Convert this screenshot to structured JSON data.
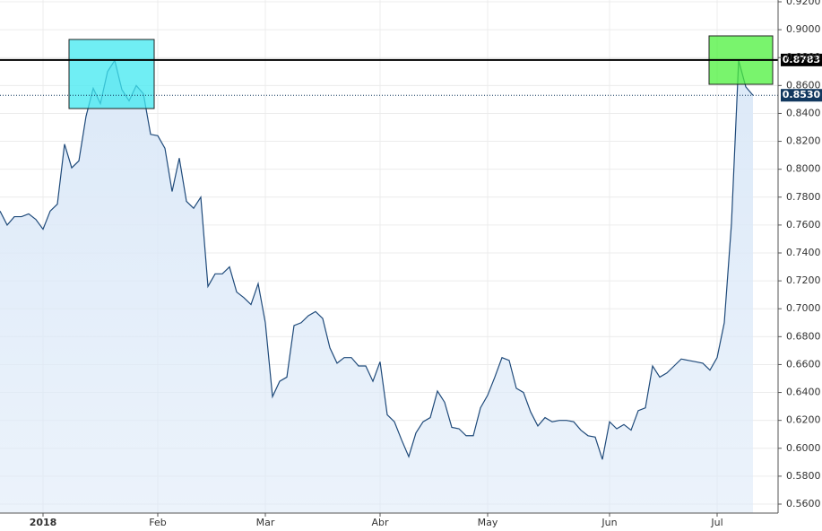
{
  "chart_data": {
    "type": "area-line",
    "color": "#1f4a7a",
    "fill": "#dce9f8",
    "grid": true,
    "categories": [
      null,
      null,
      null,
      null,
      null,
      null,
      "2018",
      null,
      null,
      null,
      null,
      null,
      null,
      null,
      null,
      null,
      null,
      null,
      null,
      null,
      null,
      null,
      "Feb",
      null,
      null,
      null,
      null,
      null,
      null,
      null,
      null,
      null,
      null,
      null,
      null,
      null,
      null,
      "Mar",
      null,
      null,
      null,
      null,
      null,
      null,
      null,
      null,
      null,
      null,
      null,
      null,
      null,
      null,
      null,
      "Abr",
      null,
      null,
      null,
      null,
      null,
      null,
      null,
      null,
      null,
      null,
      null,
      null,
      null,
      null,
      "May",
      null,
      null,
      null,
      null,
      null,
      null,
      null,
      null,
      null,
      null,
      null,
      null,
      null,
      null,
      null,
      null,
      "Jun",
      null,
      null,
      null,
      null,
      null,
      null,
      null,
      null,
      null,
      null,
      null,
      null,
      null,
      null,
      "Jul",
      null,
      null,
      null,
      null,
      null
    ],
    "values": [
      0.77,
      0.76,
      0.766,
      0.766,
      0.768,
      0.764,
      0.757,
      0.77,
      0.775,
      0.818,
      0.801,
      0.806,
      0.838,
      0.858,
      0.847,
      0.87,
      0.878,
      0.857,
      0.849,
      0.86,
      0.854,
      0.825,
      0.824,
      0.815,
      0.784,
      0.808,
      0.777,
      0.772,
      0.78,
      0.716,
      0.725,
      0.725,
      0.73,
      0.712,
      0.708,
      0.703,
      0.718,
      0.69,
      0.637,
      0.648,
      0.651,
      0.688,
      0.69,
      0.695,
      0.698,
      0.693,
      0.672,
      0.661,
      0.665,
      0.665,
      0.659,
      0.659,
      0.648,
      0.662,
      0.624,
      0.619,
      0.606,
      0.594,
      0.611,
      0.619,
      0.622,
      0.641,
      0.633,
      0.615,
      0.614,
      0.609,
      0.609,
      0.629,
      0.638,
      0.651,
      0.665,
      0.663,
      0.643,
      0.64,
      0.626,
      0.616,
      0.622,
      0.619,
      0.62,
      0.62,
      0.619,
      0.613,
      0.609,
      0.608,
      0.592,
      0.619,
      0.614,
      0.617,
      0.613,
      0.627,
      0.629,
      0.659,
      0.651,
      0.654,
      0.659,
      0.664,
      0.663,
      0.662,
      0.661,
      0.656,
      0.665,
      0.69,
      0.761,
      0.878,
      0.859,
      0.853
    ],
    "ylim": [
      0.556,
      0.9213
    ],
    "yticks": [
      {
        "value": 0.56,
        "label": "0.5600"
      },
      {
        "value": 0.58,
        "label": "0.5800"
      },
      {
        "value": 0.6,
        "label": "0.6000"
      },
      {
        "value": 0.62,
        "label": "0.6200"
      },
      {
        "value": 0.64,
        "label": "0.6400"
      },
      {
        "value": 0.66,
        "label": "0.6600"
      },
      {
        "value": 0.68,
        "label": "0.6800"
      },
      {
        "value": 0.7,
        "label": "0.7000"
      },
      {
        "value": 0.72,
        "label": "0.7200"
      },
      {
        "value": 0.74,
        "label": "0.7400"
      },
      {
        "value": 0.76,
        "label": "0.7600"
      },
      {
        "value": 0.78,
        "label": "0.7800"
      },
      {
        "value": 0.8,
        "label": "0.8000"
      },
      {
        "value": 0.82,
        "label": "0.8200"
      },
      {
        "value": 0.84,
        "label": "0.8400"
      },
      {
        "value": 0.86,
        "label": "0.8600"
      },
      {
        "value": 0.88,
        "label": "0.8800"
      },
      {
        "value": 0.9,
        "label": "0.9000"
      },
      {
        "value": 0.92,
        "label": "0.9200"
      }
    ],
    "price_lines": [
      {
        "value": 0.8783,
        "label": "0.8783",
        "color": "#000000",
        "style": "solid"
      },
      {
        "value": 0.853,
        "label": "0.8530",
        "color": "#12385f",
        "style": "dotted"
      }
    ]
  }
}
